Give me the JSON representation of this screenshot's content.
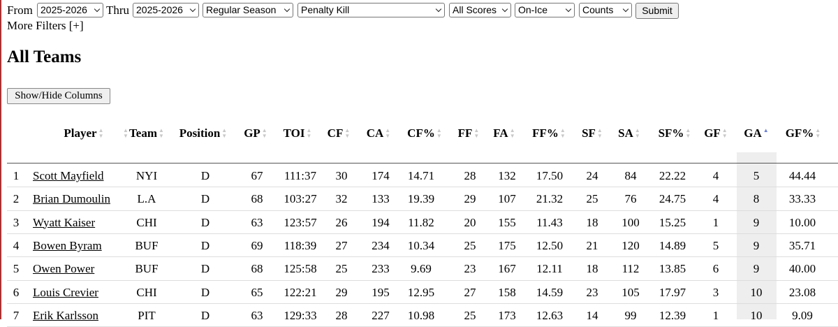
{
  "filters": {
    "from_label": "From",
    "from": "2025-2026",
    "thru_label": "Thru",
    "thru": "2025-2026",
    "season_type": "Regular Season",
    "situation": "Penalty Kill",
    "score": "All Scores",
    "stat_type": "On-Ice",
    "display": "Counts",
    "submit": "Submit",
    "more_filters": "More Filters [+]"
  },
  "header": {
    "title": "All Teams",
    "columns_button": "Show/Hide Columns"
  },
  "table": {
    "columns": [
      "Player",
      "Team",
      "Position",
      "GP",
      "TOI",
      "CF",
      "CA",
      "CF%",
      "FF",
      "FA",
      "FF%",
      "SF",
      "SA",
      "SF%",
      "GF",
      "GA",
      "GF%"
    ],
    "rows": [
      [
        "1",
        "Scott Mayfield",
        "NYI",
        "D",
        "67",
        "111:37",
        "30",
        "174",
        "14.71",
        "28",
        "132",
        "17.50",
        "24",
        "84",
        "22.22",
        "4",
        "5",
        "44.44"
      ],
      [
        "2",
        "Brian Dumoulin",
        "L.A",
        "D",
        "68",
        "103:27",
        "32",
        "133",
        "19.39",
        "29",
        "107",
        "21.32",
        "25",
        "76",
        "24.75",
        "4",
        "8",
        "33.33"
      ],
      [
        "3",
        "Wyatt Kaiser",
        "CHI",
        "D",
        "63",
        "123:57",
        "26",
        "194",
        "11.82",
        "20",
        "155",
        "11.43",
        "18",
        "100",
        "15.25",
        "1",
        "9",
        "10.00"
      ],
      [
        "4",
        "Bowen Byram",
        "BUF",
        "D",
        "69",
        "118:39",
        "27",
        "234",
        "10.34",
        "25",
        "175",
        "12.50",
        "21",
        "120",
        "14.89",
        "5",
        "9",
        "35.71"
      ],
      [
        "5",
        "Owen Power",
        "BUF",
        "D",
        "68",
        "125:58",
        "25",
        "233",
        "9.69",
        "23",
        "167",
        "12.11",
        "18",
        "112",
        "13.85",
        "6",
        "9",
        "40.00"
      ],
      [
        "6",
        "Louis Crevier",
        "CHI",
        "D",
        "65",
        "122:21",
        "29",
        "195",
        "12.95",
        "27",
        "158",
        "14.59",
        "23",
        "105",
        "17.97",
        "3",
        "10",
        "23.08"
      ],
      [
        "7",
        "Erik Karlsson",
        "PIT",
        "D",
        "63",
        "129:33",
        "28",
        "227",
        "10.98",
        "25",
        "173",
        "12.63",
        "14",
        "99",
        "12.39",
        "1",
        "10",
        "9.09"
      ]
    ]
  }
}
